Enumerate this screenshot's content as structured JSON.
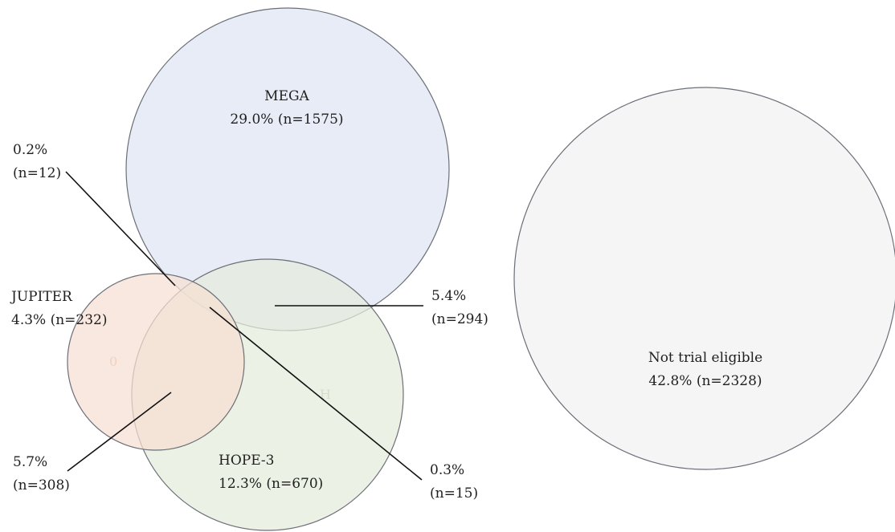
{
  "diagram": {
    "sets": [
      {
        "id": "mega",
        "label": "MEGA",
        "value": "29.0% (n=1575)",
        "fill": "#dfe5f4"
      },
      {
        "id": "jupiter",
        "label": "JUPITER",
        "value": "4.3% (n=232)",
        "fill": "#f7dfd2"
      },
      {
        "id": "hope3",
        "label": "HOPE-3",
        "value": "12.3% (n=670)",
        "fill": "#e4ecdb"
      },
      {
        "id": "not_eligible",
        "label": "Not trial eligible",
        "value": "42.8% (n=2328)",
        "fill": "#f5f5f5"
      }
    ],
    "callouts": [
      {
        "id": "mega_jupiter_hope3",
        "pct": "0.2%",
        "n": "(n=12)"
      },
      {
        "id": "mega_hope3",
        "pct": "5.4%",
        "n": "(n=294)"
      },
      {
        "id": "jupiter_hope3",
        "pct": "5.7%",
        "n": "(n=308)"
      },
      {
        "id": "mega_jupiter",
        "pct": "0.3%",
        "n": "(n=15)"
      }
    ],
    "faint_marks": {
      "jupiter": "0",
      "hope3": "H"
    }
  }
}
